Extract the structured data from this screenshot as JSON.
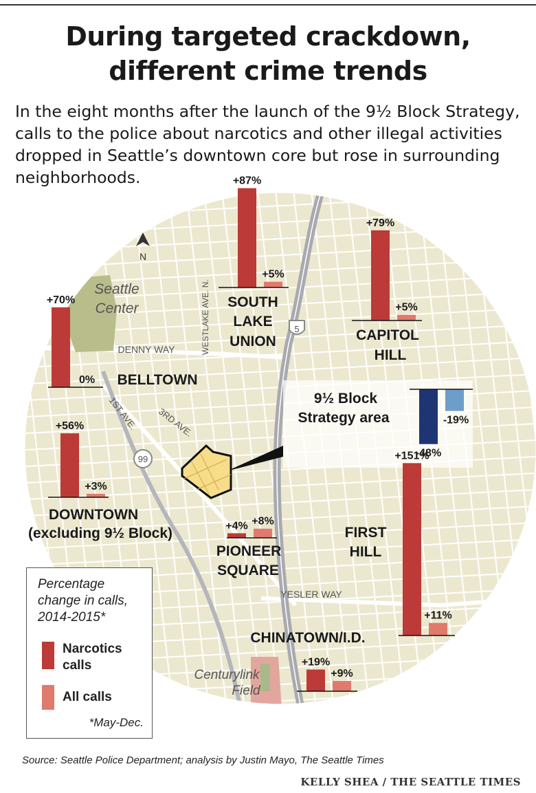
{
  "title_line1": "During targeted crackdown,",
  "title_line2": "different crime trends",
  "subtitle": "In the eight months after the launch of the 9½ Block Strategy, calls to the police about narcotics and other illegal activities dropped in Seattle’s downtown core but rose in surrounding neighborhoods.",
  "colors": {
    "narcotics": "#bc3a37",
    "all_calls": "#e07a6c",
    "strategy_narcotics": "#1f3573",
    "strategy_all": "#6c9ec9",
    "map_land": "#ece8cf",
    "map_street": "#ffffff",
    "strategy_area": "#f7dd8a",
    "seattle_center": "#b9bd8c"
  },
  "map_labels": {
    "north": "N",
    "seattle_center": [
      "Seattle",
      "Center"
    ],
    "denny_way": "DENNY WAY",
    "westlake": "WESTLAKE AVE. N.",
    "first_ave": "1ST AVE.",
    "third_ave": "3RD AVE.",
    "yesler_way": "YESLER WAY",
    "centurylink": [
      "Centurylink",
      "Field"
    ],
    "highway_99": "99",
    "interstate_5": "5"
  },
  "neighborhoods": {
    "south_lake_union": [
      "SOUTH",
      "LAKE",
      "UNION"
    ],
    "capitol_hill": [
      "CAPITOL",
      "HILL"
    ],
    "belltown": "BELLTOWN",
    "downtown": [
      "DOWNTOWN",
      "(excluding 9½ Block)"
    ],
    "pioneer_square": [
      "PIONEER",
      "SQUARE"
    ],
    "first_hill": [
      "FIRST",
      "HILL"
    ],
    "chinatown": "CHINATOWN/I.D.",
    "strategy_area": [
      "9½ Block",
      "Strategy area"
    ]
  },
  "chart_data": {
    "type": "bar",
    "title": "Percentage change in calls, 2014-2015*",
    "note": "*May-Dec.",
    "series_names": [
      "Narcotics calls",
      "All calls"
    ],
    "areas": [
      {
        "name": "South Lake Union",
        "narcotics": 87,
        "all": 5,
        "narcotics_label": "+87%",
        "all_label": "+5%"
      },
      {
        "name": "Capitol Hill",
        "narcotics": 79,
        "all": 5,
        "narcotics_label": "+79%",
        "all_label": "+5%"
      },
      {
        "name": "Belltown",
        "narcotics": 70,
        "all": 0,
        "narcotics_label": "+70%",
        "all_label": "0%"
      },
      {
        "name": "Downtown (excluding 9½ Block)",
        "narcotics": 56,
        "all": 3,
        "narcotics_label": "+56%",
        "all_label": "+3%"
      },
      {
        "name": "Pioneer Square",
        "narcotics": 4,
        "all": 8,
        "narcotics_label": "+4%",
        "all_label": "+8%"
      },
      {
        "name": "First Hill",
        "narcotics": 151,
        "all": 11,
        "narcotics_label": "+151%",
        "all_label": "+11%"
      },
      {
        "name": "Chinatown/I.D.",
        "narcotics": 19,
        "all": 9,
        "narcotics_label": "+19%",
        "all_label": "+9%"
      },
      {
        "name": "9½ Block Strategy area",
        "narcotics": -48,
        "all": -19,
        "narcotics_label": "-48%",
        "all_label": "-19%"
      }
    ]
  },
  "legend": {
    "title_lines": [
      "Percentage",
      "change in calls,",
      "2014-2015*"
    ],
    "narcotics_lines": [
      "Narcotics",
      "calls"
    ],
    "all_calls": "All calls",
    "note": "*May-Dec."
  },
  "source": "Source: Seattle Police Department; analysis by Justin Mayo, The Seattle Times",
  "credit": "KELLY SHEA / THE SEATTLE TIMES"
}
